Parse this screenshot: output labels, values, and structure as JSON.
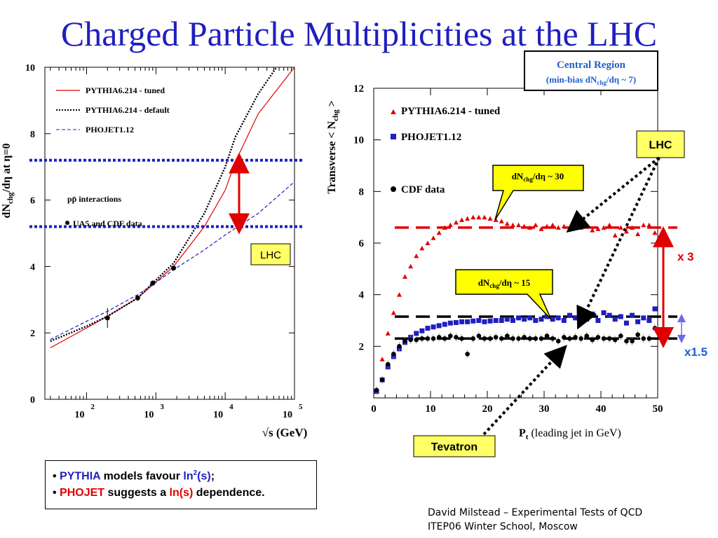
{
  "title": "Charged Particle Multiplicities at the LHC",
  "chart_data": [
    {
      "type": "line",
      "ylabel_main": "dN",
      "ylabel_sub": "chg",
      "ylabel_rest": "/dη at η=0",
      "xlabel": "√s (GeV)",
      "xscale": "log",
      "xlim": [
        25,
        100000
      ],
      "ylim": [
        0,
        10
      ],
      "yticks": [
        "0",
        "2",
        "4",
        "6",
        "8",
        "10"
      ],
      "xticks": [
        {
          "base": "10",
          "exp": "2",
          "value": 100
        },
        {
          "base": "10",
          "exp": "3",
          "value": 1000
        },
        {
          "base": "10",
          "exp": "4",
          "value": 10000
        },
        {
          "base": "10",
          "exp": "5",
          "value": 100000
        }
      ],
      "legend": [
        "PYTHIA6.214 - tuned",
        "PYTHIA6.214 - default",
        "PHOJET1.12"
      ],
      "annotation_pp": "pp̄ interactions",
      "annotation_data": "UA5 and CDF data",
      "series": [
        {
          "name": "PYTHIA6.214 - tuned",
          "color": "#e00000",
          "style": "solid",
          "x": [
            30,
            100,
            200,
            546,
            900,
            1800,
            5000,
            10000,
            14000,
            30000,
            100000
          ],
          "y": [
            1.55,
            2.15,
            2.5,
            3.05,
            3.45,
            4.0,
            5.2,
            6.3,
            7.15,
            8.6,
            10.0
          ]
        },
        {
          "name": "PYTHIA6.214 - default",
          "color": "#000000",
          "style": "dotted",
          "x": [
            30,
            100,
            200,
            546,
            900,
            1800,
            5000,
            10000,
            14000,
            30000,
            55000
          ],
          "y": [
            1.75,
            2.2,
            2.5,
            3.05,
            3.5,
            4.1,
            5.6,
            7.0,
            7.9,
            9.2,
            10.0
          ]
        },
        {
          "name": "PHOJET1.12",
          "color": "#1f1fbf",
          "style": "dashed",
          "x": [
            30,
            100,
            200,
            546,
            900,
            1800,
            5000,
            10000,
            14000,
            30000,
            100000
          ],
          "y": [
            1.8,
            2.35,
            2.65,
            3.15,
            3.45,
            3.9,
            4.5,
            4.95,
            5.15,
            5.6,
            6.55
          ]
        }
      ],
      "data_points": {
        "name": "UA5 and CDF data",
        "x": [
          200,
          546,
          900,
          1800
        ],
        "y": [
          2.45,
          3.05,
          3.5,
          3.95
        ],
        "err": [
          0.3,
          0.08,
          0.08,
          0.06
        ]
      },
      "lhc_lines": [
        7.2,
        5.2
      ],
      "lhc_label": "LHC"
    },
    {
      "type": "scatter",
      "ylabel_main": "Transverse < N",
      "ylabel_sub": "chg",
      "ylabel_rest": " >",
      "xlabel_main": "P",
      "xlabel_sub": "t",
      "xlabel_rest": " (leading jet in GeV)",
      "xlim": [
        0,
        50
      ],
      "ylim": [
        0,
        12
      ],
      "xticks": [
        "0",
        "10",
        "20",
        "30",
        "40",
        "50"
      ],
      "yticks": [
        "2",
        "4",
        "6",
        "8",
        "10",
        "12"
      ],
      "legend": [
        "PYTHIA6.214 - tuned",
        "PHOJET1.12",
        "CDF data"
      ],
      "series": [
        {
          "name": "PYTHIA6.214 - tuned",
          "color": "#e00000",
          "marker": "triangle",
          "x": [
            0.5,
            1.5,
            2.5,
            3.5,
            4.5,
            5.5,
            6.5,
            7.5,
            8.5,
            9.5,
            10.5,
            11.5,
            12.5,
            13.5,
            14.5,
            15.5,
            16.5,
            17.5,
            18.5,
            19.5,
            20.5,
            21.5,
            22.5,
            23.5,
            24.5,
            25.5,
            26.5,
            27.5,
            28.5,
            29.5,
            30.5,
            31.5,
            32.5,
            33.5,
            34.5,
            35.5,
            36.5,
            37.5,
            38.5,
            39.5,
            40.5,
            41.5,
            42.5,
            43.5,
            44.5,
            45.5,
            46.5,
            47.5,
            48.5,
            49.5
          ],
          "y": [
            0.3,
            1.5,
            2.5,
            3.3,
            4.0,
            4.7,
            5.1,
            5.5,
            5.8,
            6.0,
            6.2,
            6.4,
            6.6,
            6.7,
            6.8,
            6.9,
            6.95,
            7.0,
            7.0,
            7.0,
            6.95,
            6.9,
            6.85,
            6.75,
            6.7,
            6.7,
            6.65,
            6.6,
            6.7,
            6.55,
            6.65,
            6.7,
            6.6,
            6.65,
            6.55,
            6.7,
            6.6,
            6.7,
            6.5,
            6.55,
            6.6,
            6.7,
            6.3,
            6.6,
            6.45,
            6.6,
            6.35,
            6.7,
            6.7,
            6.4
          ]
        },
        {
          "name": "PHOJET1.12",
          "color": "#1f1fbf",
          "marker": "square",
          "x": [
            0.5,
            1.5,
            2.5,
            3.5,
            4.5,
            5.5,
            6.5,
            7.5,
            8.5,
            9.5,
            10.5,
            11.5,
            12.5,
            13.5,
            14.5,
            15.5,
            16.5,
            17.5,
            18.5,
            19.5,
            20.5,
            21.5,
            22.5,
            23.5,
            24.5,
            25.5,
            26.5,
            27.5,
            28.5,
            29.5,
            30.5,
            31.5,
            32.5,
            33.5,
            34.5,
            35.5,
            36.5,
            37.5,
            38.5,
            39.5,
            40.5,
            41.5,
            42.5,
            43.5,
            44.5,
            45.5,
            46.5,
            47.5,
            48.5,
            49.5
          ],
          "y": [
            0.25,
            0.7,
            1.2,
            1.6,
            1.9,
            2.15,
            2.35,
            2.5,
            2.6,
            2.7,
            2.75,
            2.8,
            2.85,
            2.9,
            2.92,
            2.95,
            2.95,
            2.98,
            3.0,
            2.95,
            2.98,
            3.0,
            3.0,
            3.05,
            3.0,
            3.1,
            3.05,
            3.1,
            3.0,
            3.05,
            3.15,
            3.05,
            3.1,
            3.0,
            3.2,
            3.1,
            3.15,
            3.05,
            3.25,
            3.0,
            3.3,
            3.2,
            3.05,
            3.15,
            2.9,
            3.2,
            2.95,
            3.1,
            3.0,
            3.45
          ]
        },
        {
          "name": "CDF data",
          "color": "#000000",
          "marker": "circle",
          "x": [
            0.5,
            1.5,
            2.5,
            3.5,
            4.5,
            5.5,
            6.5,
            7.5,
            8.5,
            9.5,
            10.5,
            11.5,
            12.5,
            13.5,
            14.5,
            15.5,
            16.5,
            17.5,
            18.5,
            19.5,
            20.5,
            21.5,
            22.5,
            23.5,
            24.5,
            25.5,
            26.5,
            27.5,
            28.5,
            29.5,
            30.5,
            31.5,
            32.5,
            33.5,
            34.5,
            35.5,
            36.5,
            37.5,
            38.5,
            39.5,
            40.5,
            41.5,
            42.5,
            43.5,
            44.5,
            45.5,
            46.5,
            47.5,
            48.5,
            49.5
          ],
          "y": [
            0.3,
            0.7,
            1.3,
            1.7,
            2.0,
            2.2,
            2.25,
            2.25,
            2.3,
            2.3,
            2.3,
            2.35,
            2.3,
            2.4,
            2.35,
            2.3,
            1.7,
            2.3,
            2.4,
            2.3,
            2.3,
            2.35,
            2.3,
            2.4,
            2.3,
            2.3,
            2.35,
            2.3,
            2.3,
            2.3,
            2.4,
            2.3,
            2.2,
            2.35,
            2.3,
            2.35,
            2.3,
            2.4,
            2.25,
            2.35,
            2.3,
            2.3,
            2.25,
            2.4,
            2.2,
            2.2,
            2.45,
            2.3,
            2.3,
            2.7
          ]
        }
      ],
      "ref_lines": [
        {
          "y": 6.6,
          "color": "#e00000"
        },
        {
          "y": 3.15,
          "color": "#000000"
        },
        {
          "y": 2.3,
          "color": "#000000"
        }
      ],
      "header_box_line1": "Central Region",
      "header_box_line2_a": "(min-bias dN",
      "header_box_line2_sub": "chg",
      "header_box_line2_b": "/dη ~ 7)",
      "callout_30_a": "dN",
      "callout_30_sub": "chg",
      "callout_30_b": "/dη ~ 30",
      "callout_15_a": "dN",
      "callout_15_sub": "chg",
      "callout_15_b": "/dη ~ 15",
      "lhc_label": "LHC",
      "tevatron_label": "Tevatron",
      "ratio_x3": "x 3",
      "ratio_x15": "x1.5"
    }
  ],
  "summary": {
    "line1_prefix": "• ",
    "line1_a": "PYTHIA",
    "line1_b": " models favour ",
    "line1_c": "ln",
    "line1_c_sup": "2",
    "line1_d": "(s)",
    "line1_e": ";",
    "line2_prefix": "• ",
    "line2_a": "PHOJET",
    "line2_b": " suggests a ",
    "line2_c": "ln(s)",
    "line2_d": " dependence."
  },
  "credit": {
    "line1": "David Milstead – Experimental Tests of QCD",
    "line2": "ITEP06 Winter School, Moscow"
  }
}
